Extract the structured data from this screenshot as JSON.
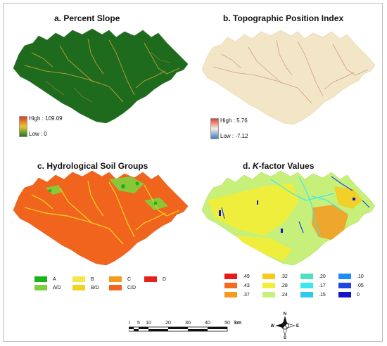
{
  "panels": {
    "a": {
      "title": "a. Percent Slope",
      "legend": {
        "high": "High : 109.09",
        "low": "Low : 0"
      },
      "colors": {
        "base": "#1e6b1e",
        "line": "#c9a23a",
        "ramp_top": "#e03a1e",
        "ramp_mid": "#e6c83a",
        "ramp_bottom": "#1f7a1f"
      }
    },
    "b": {
      "title": "b. Topographic Position Index",
      "legend": {
        "high": "High : 5.76",
        "low": "Low : -7.12"
      },
      "colors": {
        "base": "#f3e6c6",
        "line": "#c98a7a",
        "ramp_top": "#e0413a",
        "ramp_mid": "#f6efe0",
        "ramp_bottom": "#3a7fc4"
      }
    },
    "c": {
      "title": "c. Hydrological Soil Groups",
      "legend": [
        {
          "label": "A",
          "color": "#19b41a"
        },
        {
          "label": "B",
          "color": "#f7e64a"
        },
        {
          "label": "C",
          "color": "#f59a1e"
        },
        {
          "label": "D",
          "color": "#e8201a"
        },
        {
          "label": "A/D",
          "color": "#7fd13a"
        },
        {
          "label": "B/D",
          "color": "#f2d21e"
        },
        {
          "label": "C/D",
          "color": "#f0641e"
        }
      ]
    },
    "d": {
      "title_prefix": "d. ",
      "title_italic": "K",
      "title_suffix": "-factor Values",
      "legend": [
        {
          "label": ".49",
          "color": "#e81a1a"
        },
        {
          "label": ".32",
          "color": "#f5cc1e"
        },
        {
          "label": ".20",
          "color": "#4fe0c4"
        },
        {
          "label": ".10",
          "color": "#1e8cf0"
        },
        {
          "label": ".43",
          "color": "#f56a1e"
        },
        {
          "label": ".28",
          "color": "#f2ee3a"
        },
        {
          "label": ".17",
          "color": "#3ce8f0"
        },
        {
          "label": ".05",
          "color": "#1e46e6"
        },
        {
          "label": ".37",
          "color": "#f59a1e"
        },
        {
          "label": ".24",
          "color": "#c6f07a"
        },
        {
          "label": ".15",
          "color": "#2ec8f0"
        },
        {
          "label": "0",
          "color": "#1414c8"
        }
      ]
    }
  },
  "scalebar": {
    "ticks": [
      "0",
      "5",
      "10",
      "20",
      "30",
      "40",
      "50"
    ],
    "unit": "km"
  },
  "north_arrow": {
    "icon": "compass-rose-icon",
    "n": "N",
    "s": "S",
    "e": "E",
    "w": "W"
  }
}
